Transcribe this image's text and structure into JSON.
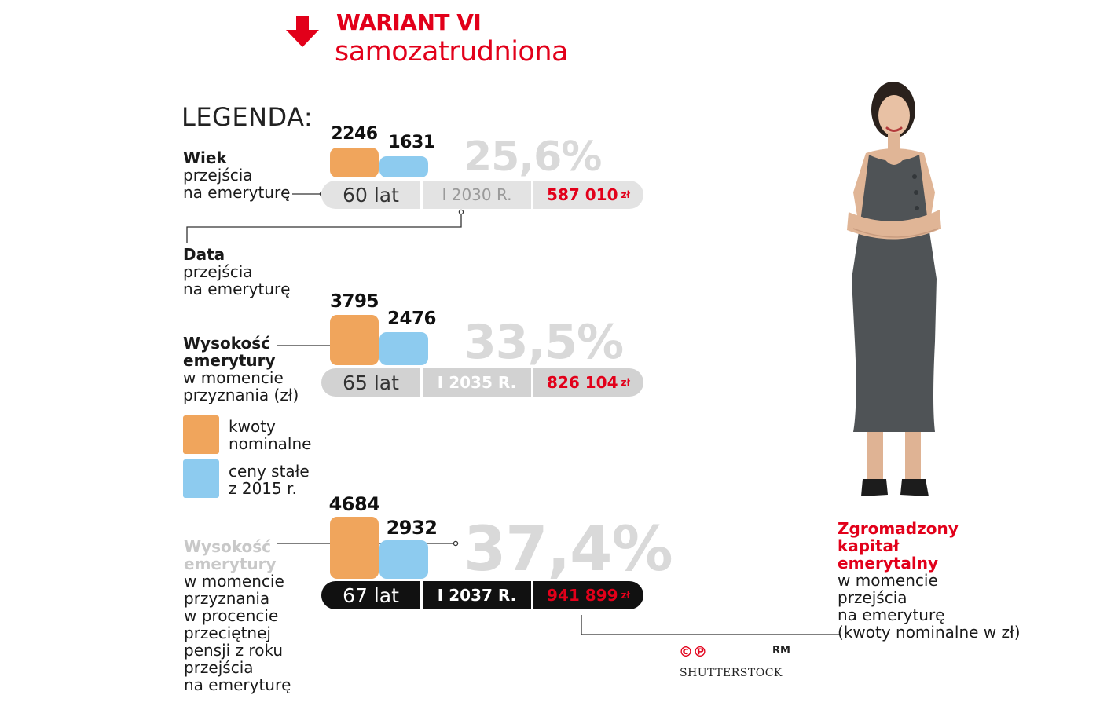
{
  "header": {
    "title": "WARIANT VI",
    "subtitle": "samozatrudniona",
    "colors": {
      "accent": "#e2001a"
    }
  },
  "legend": {
    "heading": "LEGENDA:",
    "age": {
      "bold": "Wiek",
      "lines": [
        "przejścia",
        "na emeryturę"
      ]
    },
    "date": {
      "bold": "Data",
      "lines": [
        "przejścia",
        "na emeryturę"
      ]
    },
    "amount": {
      "bold_lines": [
        "Wysokość",
        "emerytury"
      ],
      "lines": [
        "w momencie",
        "przyznania (zł)"
      ]
    },
    "nominal": {
      "lines": [
        "kwoty",
        "nominalne"
      ],
      "color": "#f0a55c"
    },
    "real": {
      "lines": [
        "ceny stałe",
        "z 2015 r."
      ],
      "color": "#8dcbef"
    },
    "percent": {
      "bold_lines": [
        "Wysokość",
        "emerytury"
      ],
      "lines": [
        "w momencie",
        "przyznania",
        "w procencie",
        "przeciętnej",
        "pensji z roku",
        "przejścia",
        "na emeryturę"
      ]
    }
  },
  "capital_note": {
    "bold_lines": [
      "Zgromadzony",
      "kapitał",
      "emerytalny"
    ],
    "lines": [
      "w momencie",
      "przejścia",
      "na emeryturę",
      "(kwoty nominalne w zł)"
    ]
  },
  "credits": {
    "logo": "©℗",
    "rm": "RM",
    "source": "SHUTTERSTOCK"
  },
  "chart_data": {
    "type": "bar",
    "series": [
      {
        "name": "kwoty nominalne",
        "color": "#f0a55c"
      },
      {
        "name": "ceny stałe z 2015 r.",
        "color": "#8dcbef"
      }
    ],
    "rows": [
      {
        "age": "60 lat",
        "date": "I 2030 R.",
        "capital": "587 010",
        "capital_unit": "zł",
        "nominal": 2246,
        "real": 1631,
        "replacement_rate": "25,6%"
      },
      {
        "age": "65 lat",
        "date": "I 2035 R.",
        "capital": "826 104",
        "capital_unit": "zł",
        "nominal": 3795,
        "real": 2476,
        "replacement_rate": "33,5%"
      },
      {
        "age": "67 lat",
        "date": "I 2037 R.",
        "capital": "941 899",
        "capital_unit": "zł",
        "nominal": 4684,
        "real": 2932,
        "replacement_rate": "37,4%"
      }
    ]
  }
}
